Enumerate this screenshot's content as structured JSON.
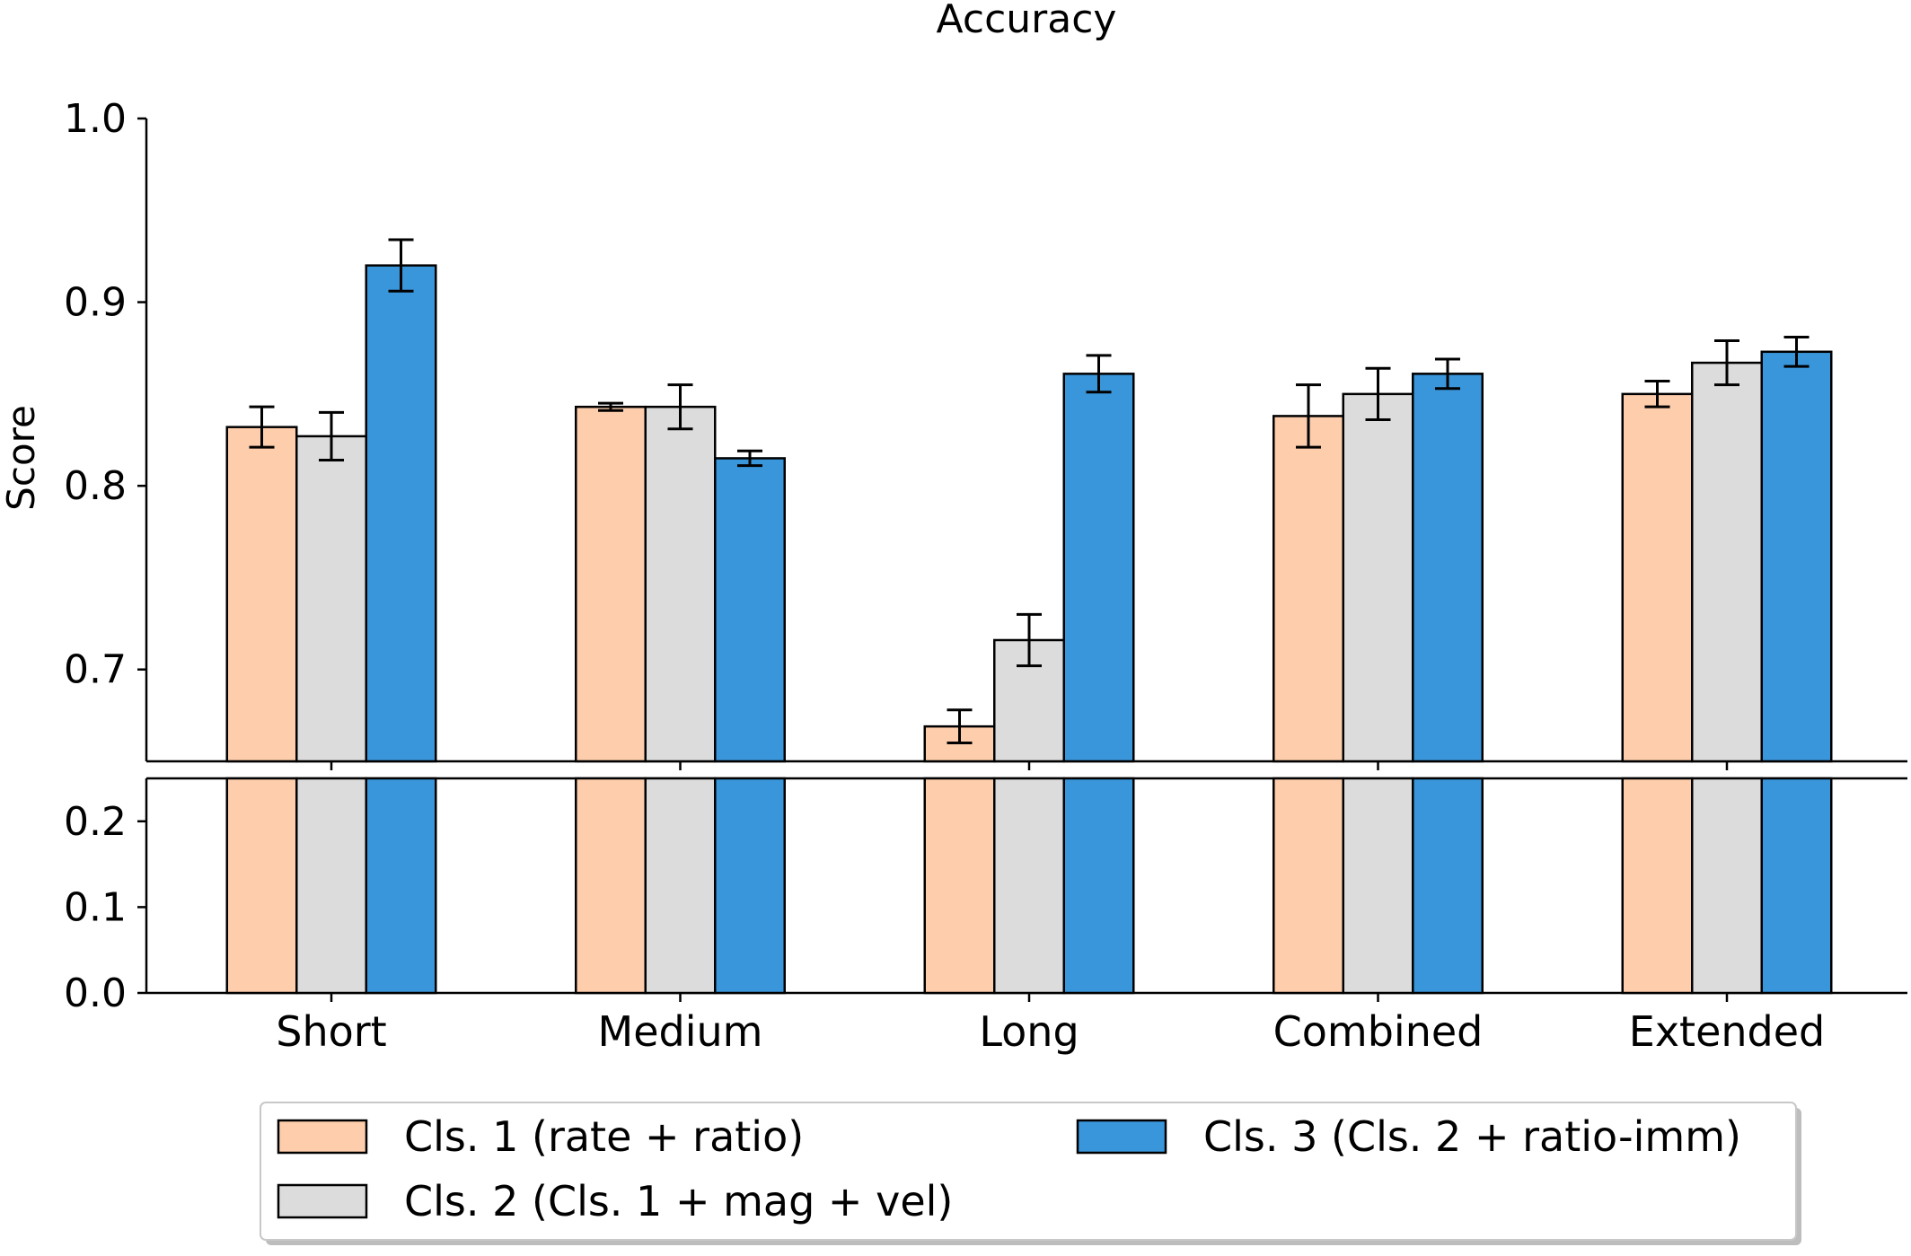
{
  "chart_data": {
    "type": "bar",
    "title": "Accuracy",
    "xlabel": "",
    "ylabel": "Score",
    "categories": [
      "Short",
      "Medium",
      "Long",
      "Combined",
      "Extended"
    ],
    "series": [
      {
        "name": "Cls. 1 (rate + ratio)",
        "color": "#FDCDAC",
        "values": [
          0.832,
          0.843,
          0.669,
          0.838,
          0.85
        ],
        "errors": [
          0.011,
          0.002,
          0.009,
          0.017,
          0.007
        ]
      },
      {
        "name": "Cls. 2 (Cls. 1 + mag + vel)",
        "color": "#DCDCDC",
        "values": [
          0.827,
          0.843,
          0.716,
          0.85,
          0.867
        ],
        "errors": [
          0.013,
          0.012,
          0.014,
          0.014,
          0.012
        ]
      },
      {
        "name": "Cls. 3 (Cls. 2 + ratio-imm)",
        "color": "#3A96DA",
        "values": [
          0.92,
          0.815,
          0.861,
          0.861,
          0.873
        ],
        "errors": [
          0.014,
          0.004,
          0.01,
          0.008,
          0.008
        ]
      }
    ],
    "axes": {
      "upper": {
        "ylim": [
          0.65,
          1.0
        ],
        "ticks": [
          "0.7",
          "0.8",
          "0.9",
          "1.0"
        ]
      },
      "lower": {
        "ylim": [
          0.0,
          0.25
        ],
        "ticks": [
          "0.0",
          "0.1",
          "0.2"
        ]
      }
    },
    "broken_axis": true,
    "grid": false,
    "legend_position": "bottom-center"
  }
}
